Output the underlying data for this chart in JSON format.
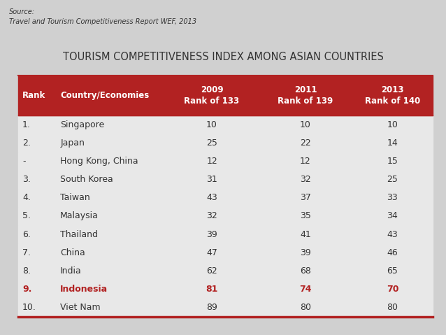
{
  "title": "TOURISM COMPETITIVENESS INDEX AMONG ASIAN COUNTRIES",
  "source_line1": "Source:",
  "source_line2": "Travel and Tourism Competitiveness Report WEF, 2013",
  "header": [
    "Rank",
    "Country/Economies",
    "2009\nRank of 133",
    "2011\nRank of 139",
    "2013\nRank of 140"
  ],
  "rows": [
    [
      "1.",
      "Singapore",
      "10",
      "10",
      "10"
    ],
    [
      "2.",
      "Japan",
      "25",
      "22",
      "14"
    ],
    [
      "-",
      "Hong Kong, China",
      "12",
      "12",
      "15"
    ],
    [
      "3.",
      "South Korea",
      "31",
      "32",
      "25"
    ],
    [
      "4.",
      "Taiwan",
      "43",
      "37",
      "33"
    ],
    [
      "5.",
      "Malaysia",
      "32",
      "35",
      "34"
    ],
    [
      "6.",
      "Thailand",
      "39",
      "41",
      "43"
    ],
    [
      "7.",
      "China",
      "47",
      "39",
      "46"
    ],
    [
      "8.",
      "India",
      "62",
      "68",
      "65"
    ],
    [
      "9.",
      "Indonesia",
      "81",
      "74",
      "70"
    ],
    [
      "10.",
      "Viet Nam",
      "89",
      "80",
      "80"
    ]
  ],
  "highlight_row": 9,
  "header_bg": "#B22222",
  "header_fg": "#FFFFFF",
  "highlight_fg": "#B22222",
  "normal_fg": "#333333",
  "bg_color": "#D0D0D0",
  "table_bg": "#E8E8E8",
  "border_color": "#B22222",
  "title_color": "#333333"
}
